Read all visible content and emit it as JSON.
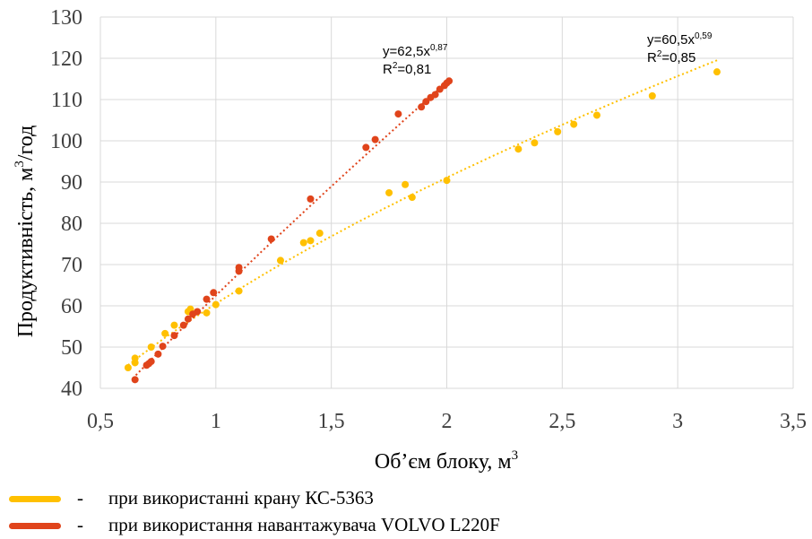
{
  "chart_data": {
    "type": "scatter",
    "xlabel": "Об’єм блоку, м",
    "xlabel_sup": "3",
    "ylabel": "Продуктивність, м",
    "ylabel_sup": "3",
    "ylabel_suffix": "/год",
    "xlim": [
      0.5,
      3.5
    ],
    "ylim": [
      40,
      130
    ],
    "xticks": [
      "0,5",
      "1",
      "1,5",
      "2",
      "2,5",
      "3",
      "3,5"
    ],
    "yticks": [
      "40",
      "50",
      "60",
      "70",
      "80",
      "90",
      "100",
      "110",
      "120",
      "130"
    ],
    "grid": true,
    "series": [
      {
        "name": "при використанні крану КС-5363",
        "color": "#FFC000",
        "trend": {
          "a": 60.5,
          "b": 0.59,
          "x_from": 0.62,
          "x_to": 3.18
        },
        "equation_base": "y=60,5x",
        "equation_exp": "0,59",
        "r2_base": "R",
        "r2_sup": "2",
        "r2_value": "=0,85",
        "points": [
          [
            0.62,
            45.0
          ],
          [
            0.65,
            46.2
          ],
          [
            0.65,
            47.3
          ],
          [
            0.72,
            50.0
          ],
          [
            0.78,
            53.3
          ],
          [
            0.82,
            55.3
          ],
          [
            0.88,
            58.6
          ],
          [
            0.89,
            59.2
          ],
          [
            0.96,
            58.3
          ],
          [
            1.0,
            60.3
          ],
          [
            1.1,
            63.6
          ],
          [
            1.28,
            71.0
          ],
          [
            1.38,
            75.3
          ],
          [
            1.41,
            75.8
          ],
          [
            1.45,
            77.6
          ],
          [
            1.75,
            87.4
          ],
          [
            1.82,
            89.4
          ],
          [
            1.85,
            86.3
          ],
          [
            2.0,
            90.4
          ],
          [
            2.31,
            98.0
          ],
          [
            2.38,
            99.5
          ],
          [
            2.48,
            102.2
          ],
          [
            2.55,
            104.0
          ],
          [
            2.65,
            106.2
          ],
          [
            2.89,
            110.9
          ],
          [
            3.17,
            116.7
          ]
        ]
      },
      {
        "name": "при використання навантажувача VOLVO L220F",
        "color": "#E0441B",
        "trend": {
          "a": 62.5,
          "b": 0.87,
          "x_from": 0.64,
          "x_to": 2.0
        },
        "equation_base": "y=62,5x",
        "equation_exp": "0,87",
        "r2_base": "R",
        "r2_sup": "2",
        "r2_value": "=0,81",
        "points": [
          [
            0.65,
            42.1
          ],
          [
            0.7,
            45.6
          ],
          [
            0.71,
            46.0
          ],
          [
            0.72,
            46.5
          ],
          [
            0.75,
            48.3
          ],
          [
            0.77,
            50.2
          ],
          [
            0.82,
            52.8
          ],
          [
            0.86,
            55.3
          ],
          [
            0.88,
            56.8
          ],
          [
            0.9,
            58.0
          ],
          [
            0.92,
            58.6
          ],
          [
            0.96,
            61.6
          ],
          [
            0.99,
            63.2
          ],
          [
            1.1,
            68.4
          ],
          [
            1.1,
            69.3
          ],
          [
            1.24,
            76.2
          ],
          [
            1.41,
            85.9
          ],
          [
            1.65,
            98.4
          ],
          [
            1.69,
            100.3
          ],
          [
            1.79,
            106.5
          ],
          [
            1.89,
            108.2
          ],
          [
            1.91,
            109.5
          ],
          [
            1.93,
            110.5
          ],
          [
            1.95,
            111.2
          ],
          [
            1.97,
            112.5
          ],
          [
            1.99,
            113.4
          ],
          [
            2.0,
            114.0
          ],
          [
            2.01,
            114.5
          ]
        ]
      }
    ]
  }
}
